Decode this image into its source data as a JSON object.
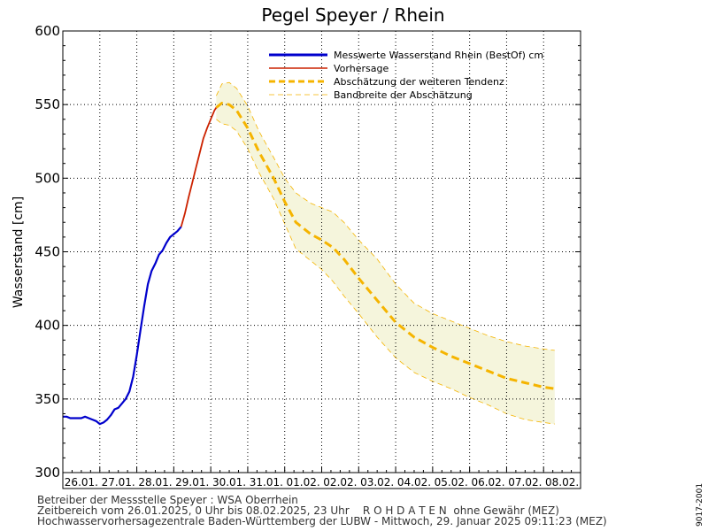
{
  "chart_data": {
    "type": "line",
    "title": "Pegel Speyer / Rhein",
    "ylabel": "Wasserstand [cm]",
    "ylim": [
      300,
      600
    ],
    "yticks": [
      "300",
      "350",
      "400",
      "450",
      "500",
      "550",
      "600"
    ],
    "x_categories": [
      "26.01.",
      "27.01.",
      "28.01.",
      "29.01.",
      "30.01.",
      "31.01.",
      "01.02.",
      "02.02.",
      "03.02.",
      "04.02.",
      "05.02.",
      "06.02.",
      "07.02.",
      "08.02."
    ],
    "grid": true,
    "legend_position": "top-right",
    "legend": [
      {
        "label": "Messwerte Wasserstand Rhein (BestOf)  cm",
        "style": "blue-solid"
      },
      {
        "label": "Vorhersage",
        "style": "red-solid"
      },
      {
        "label": "Abschätzung der weiteren Tendenz",
        "style": "orange-dashed-thick"
      },
      {
        "label": "Bandbreite der Abschätzung",
        "style": "orange-dashed-thin"
      }
    ],
    "colors": {
      "measured": "#0000cc",
      "forecast": "#cc2200",
      "tendency": "#f5b400",
      "band_fill": "#f5f5dc",
      "band_line": "#f5b400"
    },
    "series": [
      {
        "name": "Messwerte Wasserstand Rhein (BestOf)  cm",
        "x_days": [
          0,
          0.1,
          0.2,
          0.3,
          0.4,
          0.5,
          0.6,
          0.7,
          0.8,
          0.9,
          1.0,
          1.1,
          1.2,
          1.3,
          1.4,
          1.5,
          1.6,
          1.7,
          1.8,
          1.9,
          2.0,
          2.1,
          2.2,
          2.3,
          2.4,
          2.5,
          2.6,
          2.7,
          2.8,
          2.9,
          3.0,
          3.1,
          3.2
        ],
        "values": [
          338,
          338,
          337,
          337,
          337,
          337,
          338,
          337,
          336,
          335,
          333,
          334,
          336,
          339,
          343,
          344,
          347,
          350,
          355,
          365,
          380,
          397,
          413,
          428,
          437,
          442,
          448,
          451,
          456,
          460,
          462,
          464,
          467
        ]
      },
      {
        "name": "Vorhersage",
        "x_days": [
          3.2,
          3.3,
          3.4,
          3.5,
          3.6,
          3.7,
          3.8,
          3.9,
          4.0,
          4.1,
          4.15
        ],
        "values": [
          467,
          476,
          487,
          497,
          507,
          517,
          527,
          534,
          540,
          546,
          548
        ]
      },
      {
        "name": "Abschätzung der weiteren Tendenz",
        "x_days": [
          4.15,
          4.3,
          4.5,
          4.7,
          5.0,
          5.3,
          5.7,
          6.0,
          6.3,
          6.7,
          7.0,
          7.3,
          7.6,
          8.0,
          8.5,
          9.0,
          9.5,
          10.0,
          10.5,
          11.0,
          11.5,
          12.0,
          12.5,
          13.0,
          13.3
        ],
        "values": [
          548,
          551,
          550,
          546,
          534,
          518,
          500,
          484,
          470,
          462,
          458,
          453,
          445,
          432,
          417,
          402,
          392,
          385,
          379,
          374,
          369,
          364,
          361,
          358,
          357
        ]
      }
    ],
    "band": {
      "name": "Bandbreite der Abschätzung",
      "x_days": [
        4.15,
        4.3,
        4.5,
        4.7,
        5.0,
        5.3,
        5.7,
        6.0,
        6.3,
        6.7,
        7.0,
        7.3,
        7.6,
        8.0,
        8.5,
        9.0,
        9.5,
        10.0,
        10.5,
        11.0,
        11.5,
        12.0,
        12.5,
        13.0,
        13.3
      ],
      "upper": [
        556,
        564,
        565,
        561,
        549,
        532,
        514,
        500,
        490,
        483,
        480,
        477,
        470,
        458,
        445,
        428,
        415,
        408,
        403,
        398,
        393,
        389,
        386,
        384,
        383
      ],
      "lower": [
        540,
        537,
        536,
        532,
        520,
        504,
        486,
        469,
        452,
        444,
        438,
        430,
        420,
        408,
        392,
        378,
        368,
        362,
        357,
        351,
        346,
        340,
        336,
        334,
        333
      ]
    }
  },
  "footer": {
    "line1": "Betreiber der Messstelle Speyer : WSA Oberrhein",
    "line2": "Zeitbereich vom 26.01.2025, 0 Uhr bis 08.02.2025, 23 Uhr    R O H D A T E N  ohne Gewähr (MEZ)",
    "line3": "Hochwasservorhersagezentrale Baden-Württemberg der LUBW - Mittwoch, 29. Januar 2025 09:11:23 (MEZ)"
  },
  "side_label": "9017-2001"
}
